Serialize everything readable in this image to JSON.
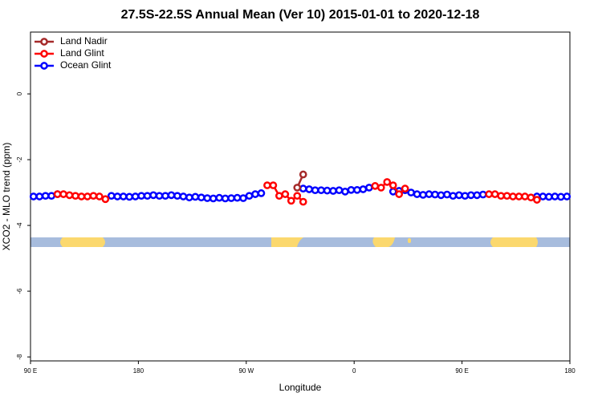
{
  "chart_data": {
    "type": "line",
    "title": "27.5S-22.5S Annual Mean (Ver 10)   2015-01-01 to 2020-12-18",
    "xlabel": "Longitude",
    "ylabel": "XCO2 - MLO trend (ppm)",
    "x": [
      92.5,
      97.5,
      102.5,
      107.5,
      112.5,
      117.5,
      122.5,
      127.5,
      132.5,
      137.5,
      142.5,
      147.5,
      152.5,
      157.5,
      162.5,
      167.5,
      172.5,
      177.5,
      182.5,
      187.5,
      192.5,
      197.5,
      202.5,
      207.5,
      212.5,
      217.5,
      222.5,
      227.5,
      232.5,
      237.5,
      242.5,
      247.5,
      252.5,
      257.5,
      262.5,
      267.5,
      272.5,
      277.5,
      282.5,
      287.5,
      292.5,
      297.5,
      302.5,
      307.5,
      312.5,
      317.5,
      322.5,
      327.5,
      332.5,
      337.5,
      342.5,
      347.5,
      352.5,
      357.5,
      362.5,
      367.5,
      372.5,
      377.5,
      382.5,
      387.5,
      392.5,
      397.5,
      402.5,
      407.5,
      412.5,
      417.5,
      422.5,
      427.5,
      432.5,
      437.5,
      442.5,
      447.5,
      452.5,
      457.5,
      462.5,
      467.5,
      472.5,
      477.5,
      482.5,
      487.5,
      492.5,
      497.5,
      502.5,
      507.5,
      512.5,
      517.5,
      522.5,
      527.5,
      532.5,
      537.5
    ],
    "series": [
      {
        "name": "Land Nadir",
        "color": "#a52a2a",
        "values": [
          null,
          null,
          null,
          null,
          null,
          null,
          null,
          null,
          null,
          null,
          null,
          null,
          null,
          null,
          null,
          null,
          null,
          null,
          null,
          null,
          null,
          null,
          null,
          null,
          null,
          null,
          null,
          null,
          null,
          null,
          null,
          null,
          null,
          null,
          null,
          null,
          null,
          null,
          null,
          null,
          null,
          null,
          null,
          null,
          -2.85,
          -2.45,
          null,
          null,
          null,
          null,
          null,
          null,
          null,
          null,
          null,
          null,
          null,
          null,
          null,
          null,
          null,
          null,
          null,
          null,
          null,
          null,
          null,
          null,
          null,
          null,
          null,
          null,
          null,
          null,
          null,
          null,
          null,
          null,
          null,
          null,
          null,
          null,
          null,
          null,
          null,
          null,
          null,
          null,
          null,
          null
        ]
      },
      {
        "name": "Land Glint",
        "color": "#ff0000",
        "values": [
          null,
          null,
          null,
          null,
          -3.05,
          -3.05,
          -3.08,
          -3.1,
          -3.12,
          -3.12,
          -3.1,
          -3.12,
          -3.2,
          null,
          null,
          null,
          null,
          null,
          null,
          null,
          null,
          null,
          null,
          null,
          null,
          null,
          null,
          null,
          null,
          null,
          null,
          null,
          null,
          null,
          null,
          null,
          null,
          null,
          null,
          -2.78,
          -2.78,
          -3.1,
          -3.05,
          -3.25,
          -3.1,
          -3.28,
          null,
          null,
          null,
          null,
          null,
          null,
          null,
          null,
          null,
          null,
          null,
          -2.8,
          -2.85,
          -2.68,
          -2.78,
          -3.05,
          -2.88,
          null,
          null,
          null,
          null,
          null,
          null,
          null,
          null,
          null,
          null,
          null,
          null,
          null,
          -3.05,
          -3.05,
          -3.1,
          -3.1,
          -3.12,
          -3.12,
          -3.12,
          -3.15,
          -3.22,
          null,
          null,
          null,
          null,
          null
        ]
      },
      {
        "name": "Ocean Glint",
        "color": "#0000ff",
        "values": [
          -3.12,
          -3.12,
          -3.1,
          -3.1,
          -3.05,
          null,
          null,
          null,
          null,
          null,
          null,
          null,
          null,
          -3.1,
          -3.12,
          -3.12,
          -3.13,
          -3.12,
          -3.1,
          -3.1,
          -3.08,
          -3.1,
          -3.1,
          -3.08,
          -3.1,
          -3.12,
          -3.15,
          -3.13,
          -3.15,
          -3.17,
          -3.18,
          -3.16,
          -3.18,
          -3.17,
          -3.16,
          -3.17,
          -3.1,
          -3.05,
          -3.02,
          null,
          null,
          null,
          null,
          null,
          null,
          -2.88,
          -2.9,
          -2.93,
          -2.93,
          -2.94,
          -2.95,
          -2.93,
          -2.97,
          -2.92,
          -2.92,
          -2.9,
          -2.85,
          null,
          null,
          null,
          -2.97,
          -2.95,
          -2.93,
          -3.0,
          -3.05,
          -3.07,
          -3.05,
          -3.06,
          -3.08,
          -3.06,
          -3.1,
          -3.08,
          -3.1,
          -3.08,
          -3.08,
          -3.06,
          null,
          null,
          null,
          null,
          null,
          null,
          null,
          null,
          -3.12,
          -3.12,
          -3.13,
          -3.12,
          -3.13,
          -3.12
        ]
      }
    ],
    "xlim": [
      90,
      540
    ],
    "xticks": [
      {
        "value": 90,
        "label": "90 E"
      },
      {
        "value": 180,
        "label": "180"
      },
      {
        "value": 270,
        "label": "90 W"
      },
      {
        "value": 360,
        "label": "0"
      },
      {
        "value": 450,
        "label": "90 E"
      },
      {
        "value": 540,
        "label": "180"
      }
    ],
    "ylim": [
      -8.12,
      1.88
    ],
    "yticks": [
      0,
      -2,
      -4,
      -6,
      -8
    ],
    "legend": "upper left"
  }
}
